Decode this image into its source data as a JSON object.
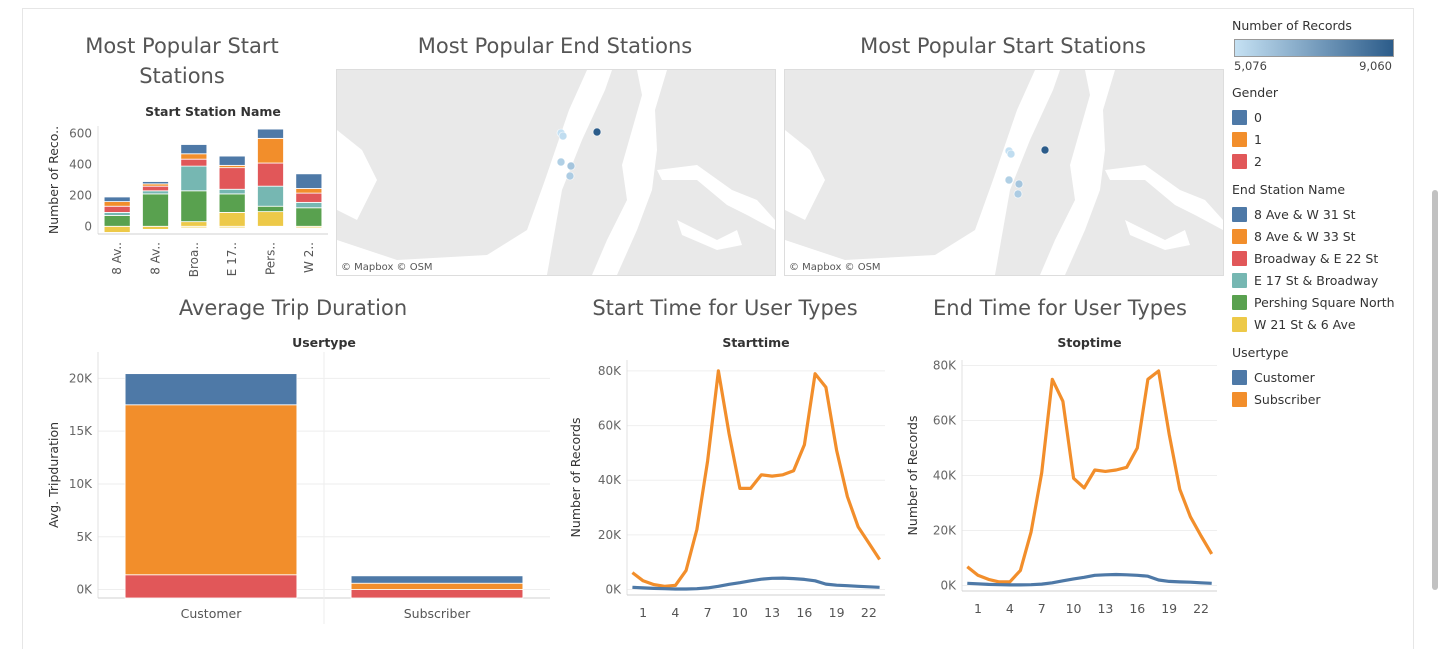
{
  "titles": {
    "start_bar": "Most Popular Start Stations",
    "end_map": "Most Popular End Stations",
    "start_map": "Most Popular Start Stations",
    "duration": "Average Trip Duration",
    "start_time": "Start Time for User Types",
    "end_time": "End Time for User Types"
  },
  "map_attribution": "© Mapbox  © OSM",
  "legend": {
    "records_title": "Number of Records",
    "records_min": "5,076",
    "records_max": "9,060",
    "gender_title": "Gender",
    "gender_items": [
      {
        "label": "0",
        "color": "#4e79a7"
      },
      {
        "label": "1",
        "color": "#f28e2b"
      },
      {
        "label": "2",
        "color": "#e15759"
      }
    ],
    "station_title": "End Station Name",
    "station_items": [
      {
        "label": "8 Ave & W 31 St",
        "color": "#4e79a7"
      },
      {
        "label": "8 Ave & W 33 St",
        "color": "#f28e2b"
      },
      {
        "label": "Broadway & E 22 St",
        "color": "#e15759"
      },
      {
        "label": "E 17 St & Broadway",
        "color": "#76b7b2"
      },
      {
        "label": "Pershing Square North",
        "color": "#59a14f"
      },
      {
        "label": "W 21 St & 6 Ave",
        "color": "#edc948"
      }
    ],
    "usertype_title": "Usertype",
    "usertype_items": [
      {
        "label": "Customer",
        "color": "#4e79a7"
      },
      {
        "label": "Subscriber",
        "color": "#f28e2b"
      }
    ]
  },
  "chart_data": [
    {
      "id": "start_stations_bar",
      "type": "bar",
      "stacked": true,
      "title": "Most Popular Start Stations",
      "subtitle": "Start Station Name",
      "ylabel": "Number of Reco..",
      "ylim": [
        -50,
        650
      ],
      "yticks": [
        0,
        200,
        400,
        600
      ],
      "categories": [
        "8 Av..",
        "8 Av..",
        "Broa..",
        "E 17..",
        "Pers..",
        "W 2.."
      ],
      "series": [
        {
          "name": "W 21 St & 6 Ave",
          "color": "#edc948",
          "values": [
            -40,
            -20,
            -10,
            -10,
            -5,
            -10
          ]
        },
        {
          "name": "W 21 St & 6 Ave",
          "color": "#edc948",
          "values": [
            0,
            0,
            30,
            90,
            95,
            0
          ]
        },
        {
          "name": "Pershing Square North",
          "color": "#59a14f",
          "values": [
            70,
            210,
            200,
            120,
            35,
            120
          ]
        },
        {
          "name": "E 17 St & Broadway",
          "color": "#76b7b2",
          "values": [
            20,
            20,
            160,
            30,
            130,
            35
          ]
        },
        {
          "name": "Broadway & E 22 St",
          "color": "#e15759",
          "values": [
            40,
            30,
            45,
            140,
            150,
            60
          ]
        },
        {
          "name": "8 Ave & W 33 St",
          "color": "#f28e2b",
          "values": [
            30,
            15,
            35,
            15,
            160,
            30
          ]
        },
        {
          "name": "8 Ave & W 31 St",
          "color": "#4e79a7",
          "values": [
            30,
            15,
            60,
            60,
            60,
            95
          ]
        }
      ]
    },
    {
      "id": "trip_duration_bar",
      "type": "bar",
      "stacked": true,
      "title": "Average Trip Duration",
      "subtitle": "Usertype",
      "ylabel": "Avg. Tripduration",
      "ylim": [
        -800,
        22500
      ],
      "yticks": [
        0,
        5000,
        10000,
        15000,
        20000
      ],
      "ytick_labels": [
        "0K",
        "5K",
        "10K",
        "15K",
        "20K"
      ],
      "categories": [
        "Customer",
        "Subscriber"
      ],
      "series": [
        {
          "name": "2",
          "color": "#e15759",
          "values": [
            2200,
            800
          ]
        },
        {
          "name": "1",
          "color": "#f28e2b",
          "values": [
            16100,
            600
          ]
        },
        {
          "name": "0",
          "color": "#4e79a7",
          "values": [
            2950,
            700
          ]
        }
      ],
      "base": -800
    },
    {
      "id": "start_time_line",
      "type": "line",
      "title": "Start Time for User Types",
      "subtitle": "Starttime",
      "ylabel": "Number of Records",
      "ylim": [
        -2000,
        84000
      ],
      "yticks": [
        0,
        20000,
        40000,
        60000,
        80000
      ],
      "ytick_labels": [
        "0K",
        "20K",
        "40K",
        "60K",
        "80K"
      ],
      "xlim": [
        -0.5,
        23.5
      ],
      "xticks": [
        1,
        4,
        7,
        10,
        13,
        16,
        19,
        22
      ],
      "x": [
        0,
        1,
        2,
        3,
        4,
        5,
        6,
        7,
        8,
        9,
        10,
        11,
        12,
        13,
        14,
        15,
        16,
        17,
        18,
        19,
        20,
        21,
        22,
        23
      ],
      "series": [
        {
          "name": "Subscriber",
          "color": "#f28e2b",
          "values": [
            6200,
            3200,
            1800,
            1200,
            1500,
            7000,
            22000,
            47000,
            80000,
            57000,
            37000,
            37000,
            42000,
            41500,
            42000,
            43500,
            53000,
            79000,
            74000,
            51000,
            34000,
            23000,
            17000,
            11000
          ]
        },
        {
          "name": "Customer",
          "color": "#4e79a7",
          "values": [
            800,
            600,
            400,
            300,
            200,
            200,
            300,
            600,
            1200,
            1900,
            2500,
            3200,
            3800,
            4100,
            4200,
            4000,
            3700,
            3200,
            2000,
            1600,
            1400,
            1200,
            1000,
            800
          ]
        }
      ]
    },
    {
      "id": "end_time_line",
      "type": "line",
      "title": "End Time for User Types",
      "subtitle": "Stoptime",
      "ylabel": "Number of Records",
      "ylim": [
        -2000,
        82000
      ],
      "yticks": [
        0,
        20000,
        40000,
        60000,
        80000
      ],
      "ytick_labels": [
        "0K",
        "20K",
        "40K",
        "60K",
        "80K"
      ],
      "xlim": [
        -0.5,
        23.5
      ],
      "xticks": [
        1,
        4,
        7,
        10,
        13,
        16,
        19,
        22
      ],
      "x": [
        0,
        1,
        2,
        3,
        4,
        5,
        6,
        7,
        8,
        9,
        10,
        11,
        12,
        13,
        14,
        15,
        16,
        17,
        18,
        19,
        20,
        21,
        22,
        23
      ],
      "series": [
        {
          "name": "Subscriber",
          "color": "#f28e2b",
          "values": [
            6800,
            3700,
            2200,
            1300,
            1300,
            5500,
            19500,
            41000,
            75000,
            67000,
            39000,
            35500,
            42000,
            41500,
            42000,
            43000,
            50000,
            75000,
            78000,
            55000,
            35000,
            25000,
            18000,
            11500
          ]
        },
        {
          "name": "Customer",
          "color": "#4e79a7",
          "values": [
            800,
            600,
            400,
            300,
            200,
            200,
            300,
            500,
            1000,
            1700,
            2400,
            3000,
            3700,
            3900,
            4000,
            3900,
            3700,
            3400,
            2000,
            1500,
            1300,
            1200,
            1000,
            800
          ]
        }
      ]
    }
  ],
  "maps": [
    {
      "id": "end_map",
      "points": [
        {
          "label": "",
          "records": 5076
        },
        {
          "label": "",
          "records": 5200
        },
        {
          "label": "",
          "records": 9060
        },
        {
          "label": "",
          "records": 5600
        },
        {
          "label": "",
          "records": 5900
        },
        {
          "label": "",
          "records": 5700
        }
      ]
    },
    {
      "id": "start_map",
      "points": [
        {
          "label": "",
          "records": 5076
        },
        {
          "label": "",
          "records": 5200
        },
        {
          "label": "",
          "records": 9060
        },
        {
          "label": "",
          "records": 5600
        },
        {
          "label": "",
          "records": 5900
        },
        {
          "label": "",
          "records": 5700
        }
      ]
    }
  ]
}
